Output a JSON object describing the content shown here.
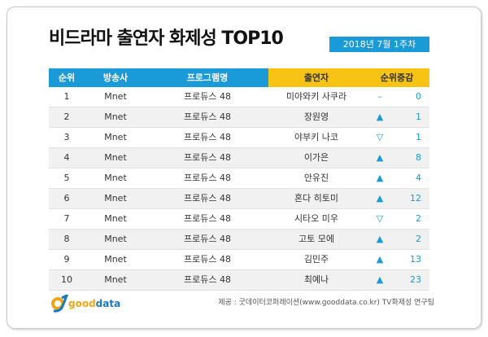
{
  "title": "비드라마 출연자 화제성 TOP10",
  "date": "2018년  7월 1주차",
  "headers": {
    "rank": "순위",
    "broadcaster": "방송사",
    "program": "프로그램명",
    "cast": "출연자",
    "change": "순위증감"
  },
  "rows": [
    {
      "rank": "1",
      "broadcaster": "Mnet",
      "program": "프로듀스 48",
      "cast": "미야와키 사쿠라",
      "arrow": "–",
      "change": "0"
    },
    {
      "rank": "2",
      "broadcaster": "Mnet",
      "program": "프로듀스 48",
      "cast": "장원영",
      "arrow": "▲",
      "change": "1"
    },
    {
      "rank": "3",
      "broadcaster": "Mnet",
      "program": "프로듀스 48",
      "cast": "야부키 나코",
      "arrow": "▽",
      "change": "1"
    },
    {
      "rank": "4",
      "broadcaster": "Mnet",
      "program": "프로듀스 48",
      "cast": "이가은",
      "arrow": "▲",
      "change": "8"
    },
    {
      "rank": "5",
      "broadcaster": "Mnet",
      "program": "프로듀스 48",
      "cast": "안유진",
      "arrow": "▲",
      "change": "4"
    },
    {
      "rank": "6",
      "broadcaster": "Mnet",
      "program": "프로듀스 48",
      "cast": "혼다 히토미",
      "arrow": "▲",
      "change": "12"
    },
    {
      "rank": "7",
      "broadcaster": "Mnet",
      "program": "프로듀스 48",
      "cast": "시타오 미우",
      "arrow": "▽",
      "change": "2"
    },
    {
      "rank": "8",
      "broadcaster": "Mnet",
      "program": "프로듀스 48",
      "cast": "고토 모에",
      "arrow": "▲",
      "change": "2"
    },
    {
      "rank": "9",
      "broadcaster": "Mnet",
      "program": "프로듀스 48",
      "cast": "김민주",
      "arrow": "▲",
      "change": "13"
    },
    {
      "rank": "10",
      "broadcaster": "Mnet",
      "program": "프로듀스 48",
      "cast": "최예나",
      "arrow": "▲",
      "change": "23"
    }
  ],
  "logo": {
    "good": "good",
    "data": "data"
  },
  "credit": "제공 : 굿데이터코퍼레이션(www.gooddata.co.kr) TV화제성 연구팀",
  "colors": {
    "blue": "#1a9ad6",
    "yellow": "#f7c315"
  }
}
